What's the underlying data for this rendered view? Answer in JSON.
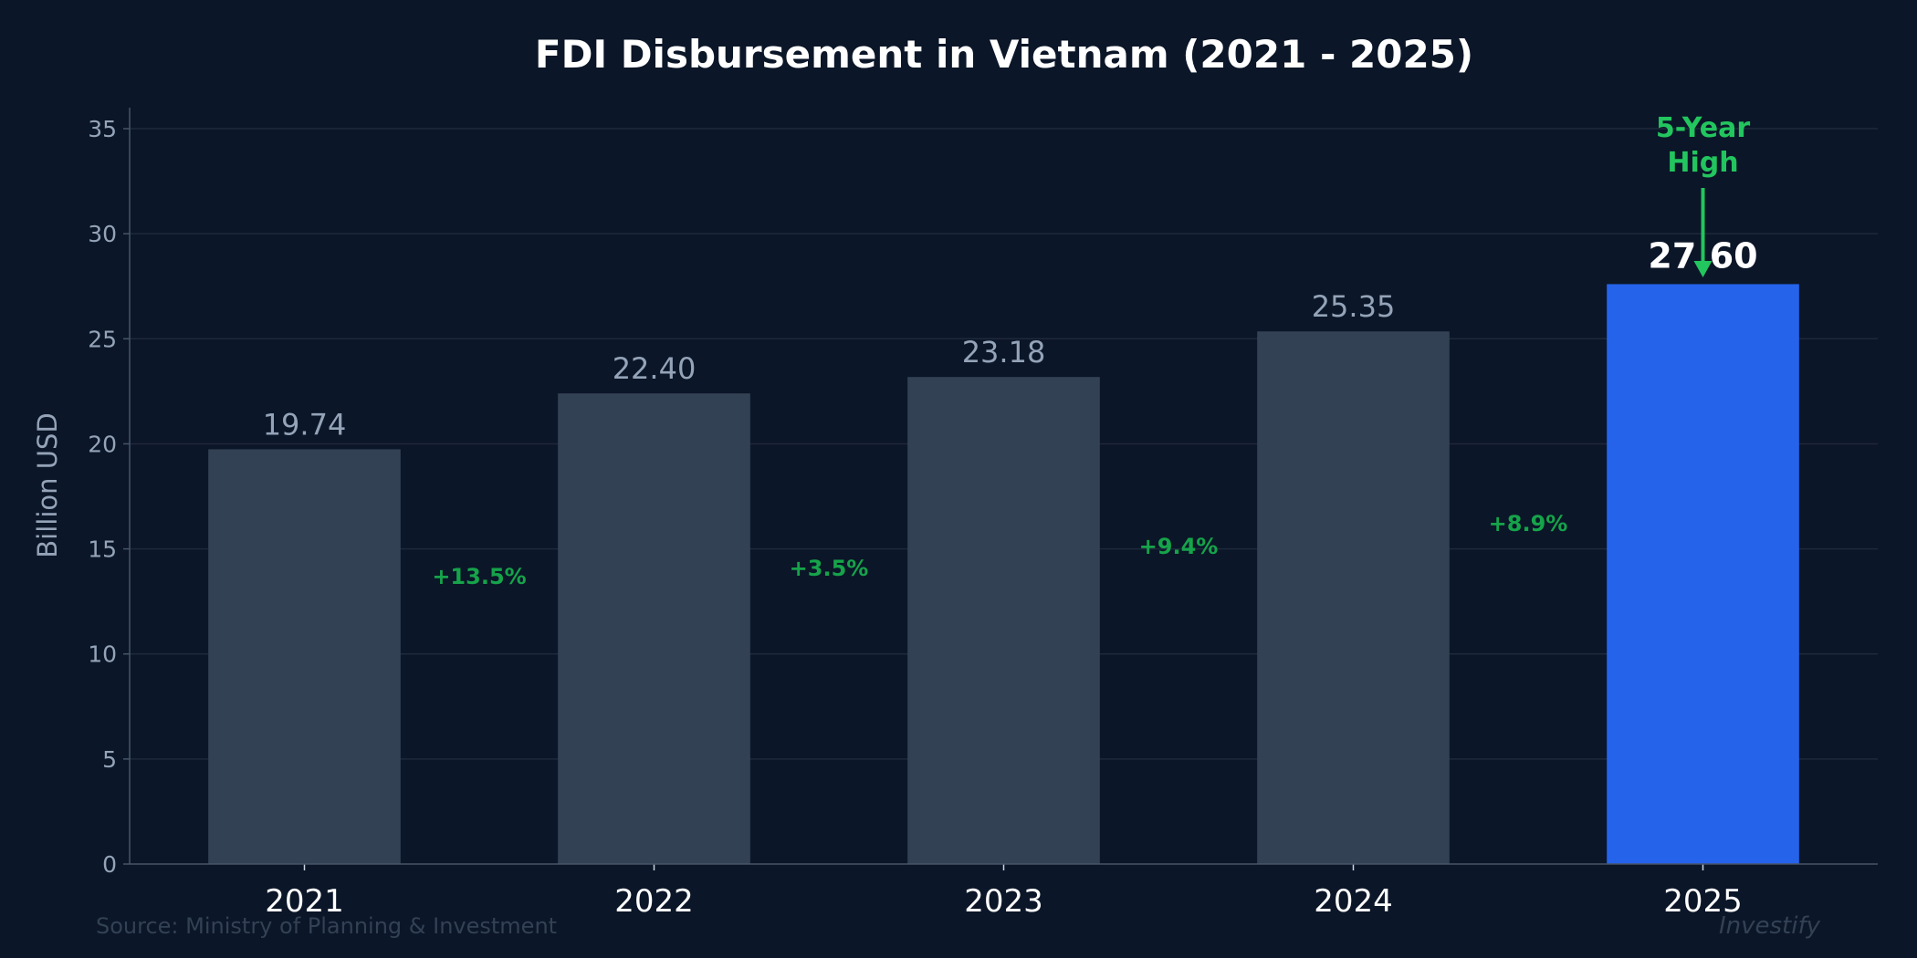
{
  "chart_data": {
    "type": "bar",
    "title": "FDI Disbursement in Vietnam (2021 - 2025)",
    "xlabel": "",
    "ylabel": "Billion USD",
    "categories": [
      "2021",
      "2022",
      "2023",
      "2024",
      "2025"
    ],
    "values": [
      19.74,
      22.4,
      23.18,
      25.35,
      27.6
    ],
    "value_labels": [
      "19.74",
      "22.40",
      "23.18",
      "25.35",
      "27.60"
    ],
    "growth_labels": [
      "+13.5%",
      "+3.5%",
      "+9.4%",
      "+8.9%"
    ],
    "ylim": [
      0,
      36
    ],
    "yticks": [
      0,
      5,
      10,
      15,
      20,
      25,
      30,
      35
    ],
    "grid": "horizontal",
    "highlight_index": 4,
    "annotation": {
      "lines": [
        "5-Year",
        "High"
      ],
      "target": "2025"
    },
    "source": "Source: Ministry of Planning & Investment",
    "brand": "Investify",
    "colors": {
      "background": "#0b1628",
      "bar": "#334155",
      "highlight": "#2563eb",
      "growth": "#16a34a",
      "annotation": "#22c55e",
      "grid": "#1e293b"
    }
  }
}
